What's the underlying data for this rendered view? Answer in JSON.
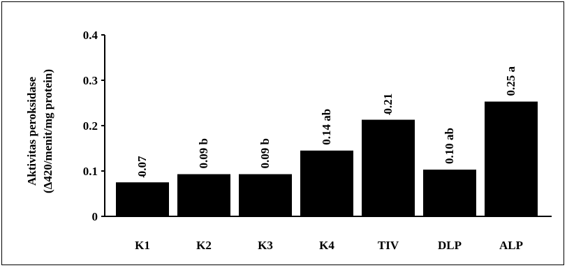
{
  "chart_data": {
    "type": "bar",
    "ylabel_line1": "Aktivitas peroksidase",
    "ylabel_line2": "(Δ420/menit/mg protein)",
    "ylim": [
      0,
      0.4
    ],
    "yticks": [
      "0",
      "0.1",
      "0.2",
      "0.3",
      "0.4"
    ],
    "ytick_values": [
      0,
      0.1,
      0.2,
      0.3,
      0.4
    ],
    "categories": [
      "K1",
      "K2",
      "K3",
      "K4",
      "TIV",
      "DLP",
      "ALP"
    ],
    "values": [
      0.075,
      0.093,
      0.093,
      0.145,
      0.213,
      0.103,
      0.253
    ],
    "data_labels": [
      "0.07",
      "0.09 b",
      "0.09 b",
      "0.14 ab",
      "0.21",
      "0.10 ab",
      "0.25 a"
    ],
    "tick_marks_after_label": [
      true,
      false,
      false,
      false,
      true,
      false,
      false
    ],
    "bar_color": "#000000",
    "grid": false
  }
}
